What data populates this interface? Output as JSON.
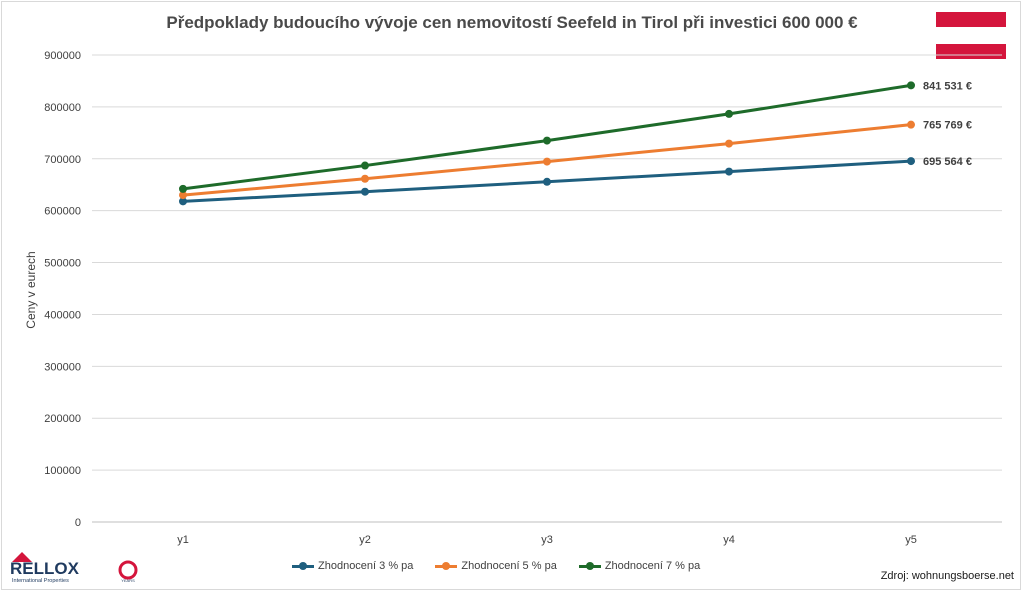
{
  "chart_data": {
    "type": "line",
    "title": "Předpoklady budoucího vývoje cen nemovitostí  Seefeld in Tirol při investici 600 000 €",
    "ylabel": "Ceny v eurech",
    "xlabel": "",
    "categories": [
      "y1",
      "y2",
      "y3",
      "y4",
      "y5"
    ],
    "ylim": [
      0,
      900000
    ],
    "yticks": [
      "0",
      "100000",
      "200000",
      "300000",
      "400000",
      "500000",
      "600000",
      "700000",
      "800000",
      "900000"
    ],
    "grid": true,
    "legend_position": "bottom",
    "series": [
      {
        "name": "Zhodnocení 3 % pa",
        "color": "#1f5f7f",
        "values": [
          618000,
          636540,
          655636,
          675305,
          695564
        ],
        "end_label": "695 564 €"
      },
      {
        "name": "Zhodnocení 5 % pa",
        "color": "#ed7d31",
        "values": [
          630000,
          661500,
          694575,
          729304,
          765769
        ],
        "end_label": "765 769 €"
      },
      {
        "name": "Zhodnocení 7 % pa",
        "color": "#1e6b2a",
        "values": [
          642000,
          686940,
          735026,
          786478,
          841531
        ],
        "end_label": "841 531 €"
      }
    ]
  },
  "source": "Zdroj: wohnungsboerse.net",
  "logo": {
    "text": "RELLOX",
    "subtext": "International Properties",
    "badge": "YEARS",
    "color": "#1f3a5f",
    "accent": "#d4153c"
  },
  "flag_color": "#d4153c"
}
